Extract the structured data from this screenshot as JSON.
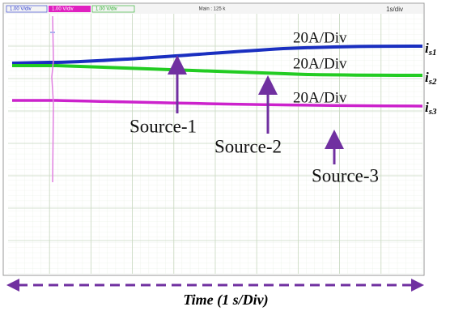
{
  "header": {
    "channels": [
      "1.00 V/div",
      "1.00 V/div",
      "1.00 V/div"
    ],
    "main": "Main : 125 k",
    "timebase": "1s/div"
  },
  "traces": [
    {
      "scale": "20A/Div",
      "label": {
        "main": "i",
        "sub": "s1"
      }
    },
    {
      "scale": "20A/Div",
      "label": {
        "main": "i",
        "sub": "s2"
      }
    },
    {
      "scale": "20A/Div",
      "label": {
        "main": "i",
        "sub": "s3"
      }
    }
  ],
  "sources": [
    "Source-1",
    "Source-2",
    "Source-3"
  ],
  "caption": "Time (1 s/Div)"
}
